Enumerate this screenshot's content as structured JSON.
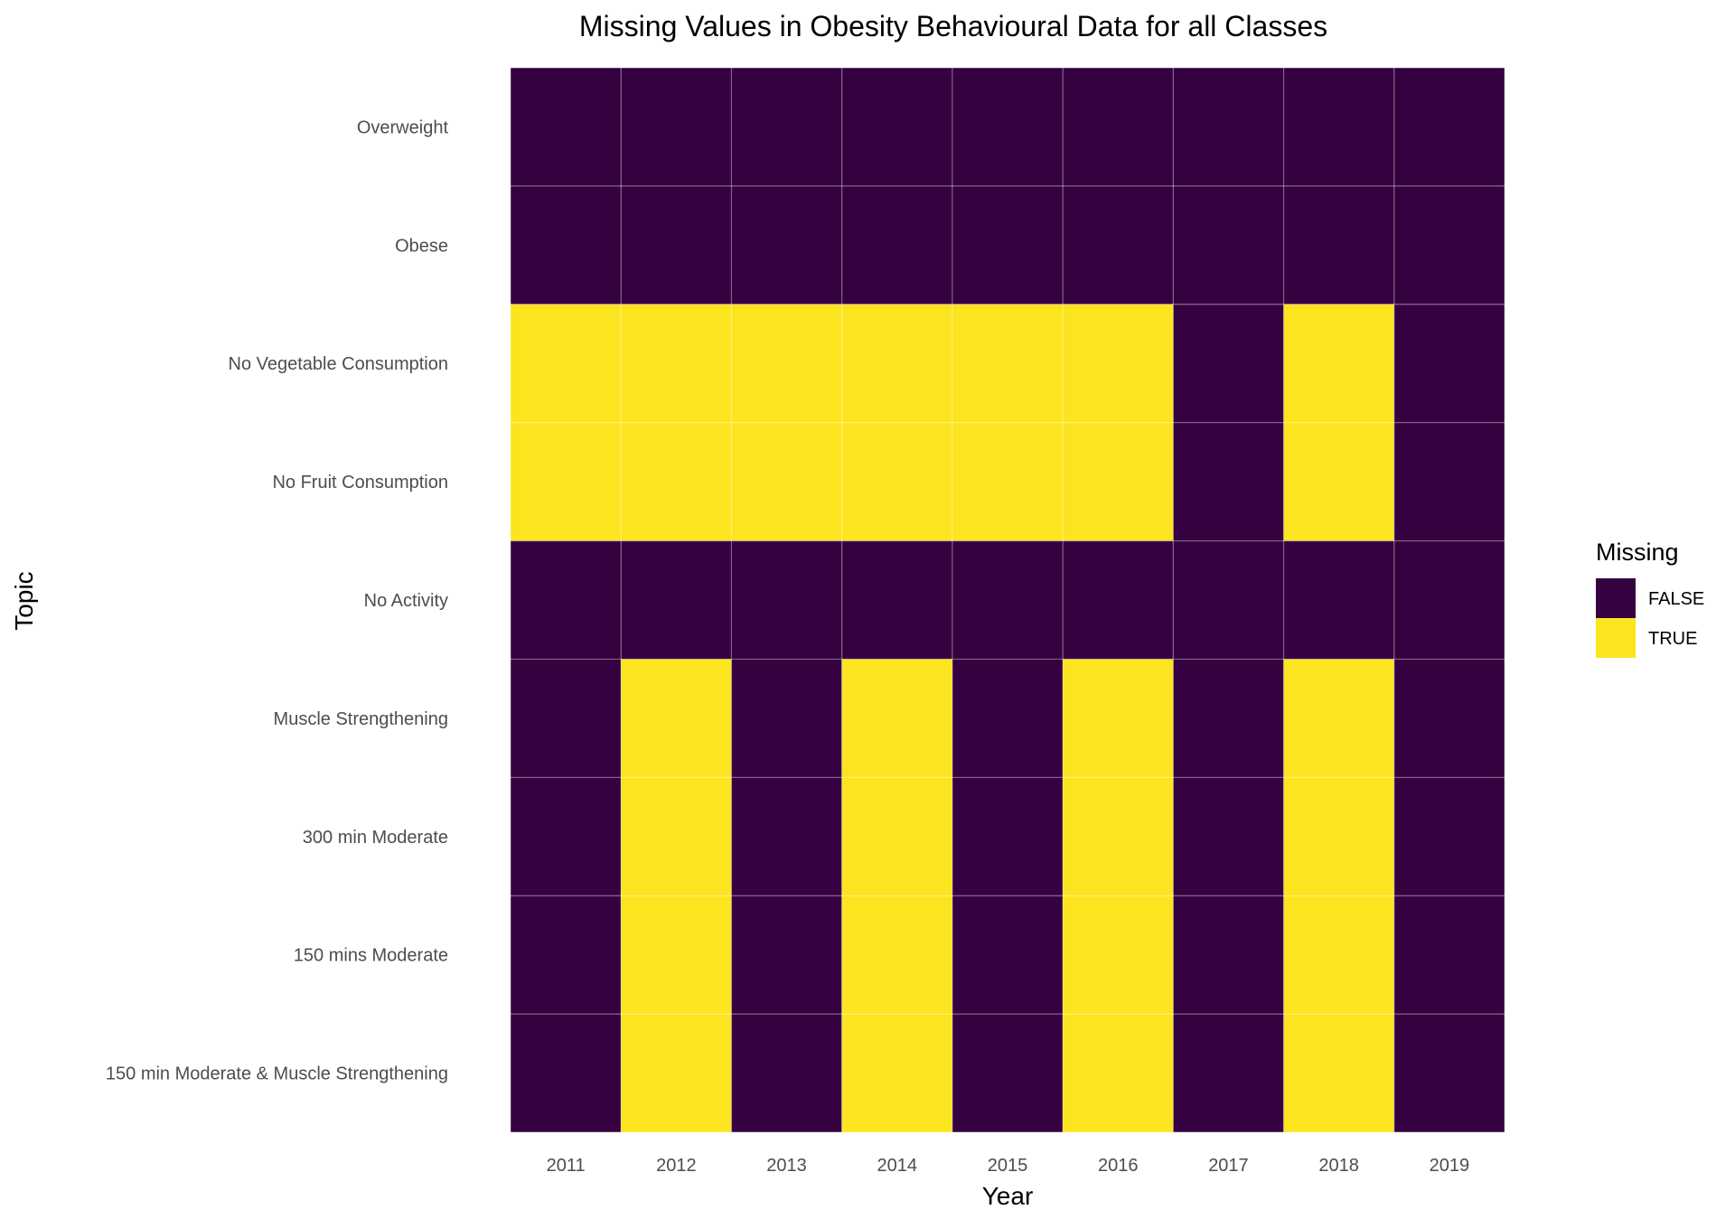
{
  "chart_data": {
    "type": "heatmap",
    "title": "Missing Values in Obesity Behavioural Data for all Classes",
    "xlabel": "Year",
    "ylabel": "Topic",
    "x": [
      "2011",
      "2012",
      "2013",
      "2014",
      "2015",
      "2016",
      "2017",
      "2018",
      "2019"
    ],
    "y": [
      "Overweight",
      "Obese",
      "No Vegetable Consumption",
      "No Fruit Consumption",
      "No Activity",
      "Muscle Strengthening",
      "300 min Moderate",
      "150 mins Moderate",
      "150 min Moderate & Muscle Strengthening"
    ],
    "values": [
      [
        false,
        false,
        false,
        false,
        false,
        false,
        false,
        false,
        false
      ],
      [
        false,
        false,
        false,
        false,
        false,
        false,
        false,
        false,
        false
      ],
      [
        true,
        true,
        true,
        true,
        true,
        true,
        false,
        true,
        false
      ],
      [
        true,
        true,
        true,
        true,
        true,
        true,
        false,
        true,
        false
      ],
      [
        false,
        false,
        false,
        false,
        false,
        false,
        false,
        false,
        false
      ],
      [
        false,
        true,
        false,
        true,
        false,
        true,
        false,
        true,
        false
      ],
      [
        false,
        true,
        false,
        true,
        false,
        true,
        false,
        true,
        false
      ],
      [
        false,
        true,
        false,
        true,
        false,
        true,
        false,
        true,
        false
      ],
      [
        false,
        true,
        false,
        true,
        false,
        true,
        false,
        true,
        false
      ]
    ],
    "legend": {
      "title": "Missing",
      "position": "right",
      "entries": [
        {
          "label": "FALSE",
          "value": false,
          "color": "#350140"
        },
        {
          "label": "TRUE",
          "value": true,
          "color": "#FCE41F"
        }
      ]
    },
    "grid": true
  }
}
